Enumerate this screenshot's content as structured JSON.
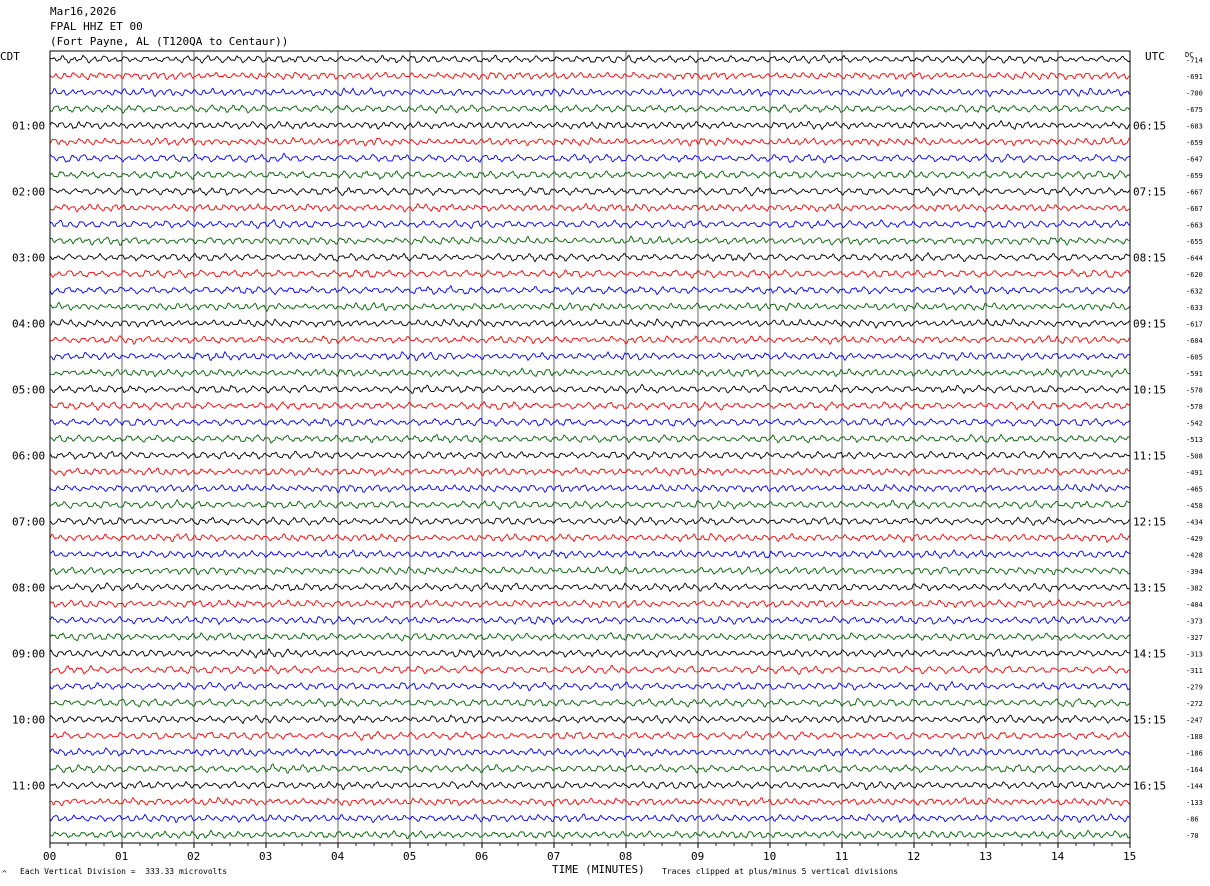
{
  "header": {
    "date": "Mar16,2026",
    "station": "FPAL HHZ ET 00",
    "location": "(Fort Payne, AL (T120QA to Centaur))"
  },
  "axes": {
    "left_label": "CDT",
    "right_label": "UTC",
    "dc_label": "DC",
    "x_label": "TIME (MINUTES)"
  },
  "footer": {
    "scale": "Each Vertical Division =  333.33 microvolts",
    "clip": "Traces clipped at plus/minus 5 vertical divisions",
    "mark": "^"
  },
  "colors": {
    "cycle": [
      "#000000",
      "#ff0000",
      "#0000ff",
      "#006400"
    ]
  },
  "chart_data": {
    "type": "line",
    "title": "Mar16,2026 FPAL HHZ ET 00 (Fort Payne, AL (T120QA to Centaur))",
    "xlabel": "TIME (MINUTES)",
    "x_ticks": [
      "00",
      "01",
      "02",
      "03",
      "04",
      "05",
      "06",
      "07",
      "08",
      "09",
      "10",
      "11",
      "12",
      "13",
      "14",
      "15"
    ],
    "xlim": [
      0,
      15
    ],
    "row_minutes": 15,
    "left_hour_labels": [
      "01:00",
      "02:00",
      "03:00",
      "04:00",
      "05:00",
      "06:00",
      "07:00",
      "08:00",
      "09:00",
      "10:00",
      "11:00"
    ],
    "right_hour_labels": [
      "06:15",
      "07:15",
      "08:15",
      "09:15",
      "10:15",
      "11:15",
      "12:15",
      "13:15",
      "14:15",
      "15:15",
      "16:15"
    ],
    "dc_offsets": [
      -714,
      -691,
      -700,
      -675,
      -683,
      -659,
      -647,
      -659,
      -667,
      -667,
      -663,
      -655,
      -644,
      -620,
      -632,
      -633,
      -617,
      -604,
      -605,
      -591,
      -578,
      -578,
      -542,
      -513,
      -508,
      -491,
      -465,
      -458,
      -434,
      -429,
      -428,
      -394,
      -382,
      -404,
      -373,
      -327,
      -313,
      -311,
      -279,
      -272,
      -247,
      -188,
      -186,
      -164,
      -144,
      -133,
      -86,
      -70
    ],
    "trace_count": 48,
    "grid": true
  }
}
